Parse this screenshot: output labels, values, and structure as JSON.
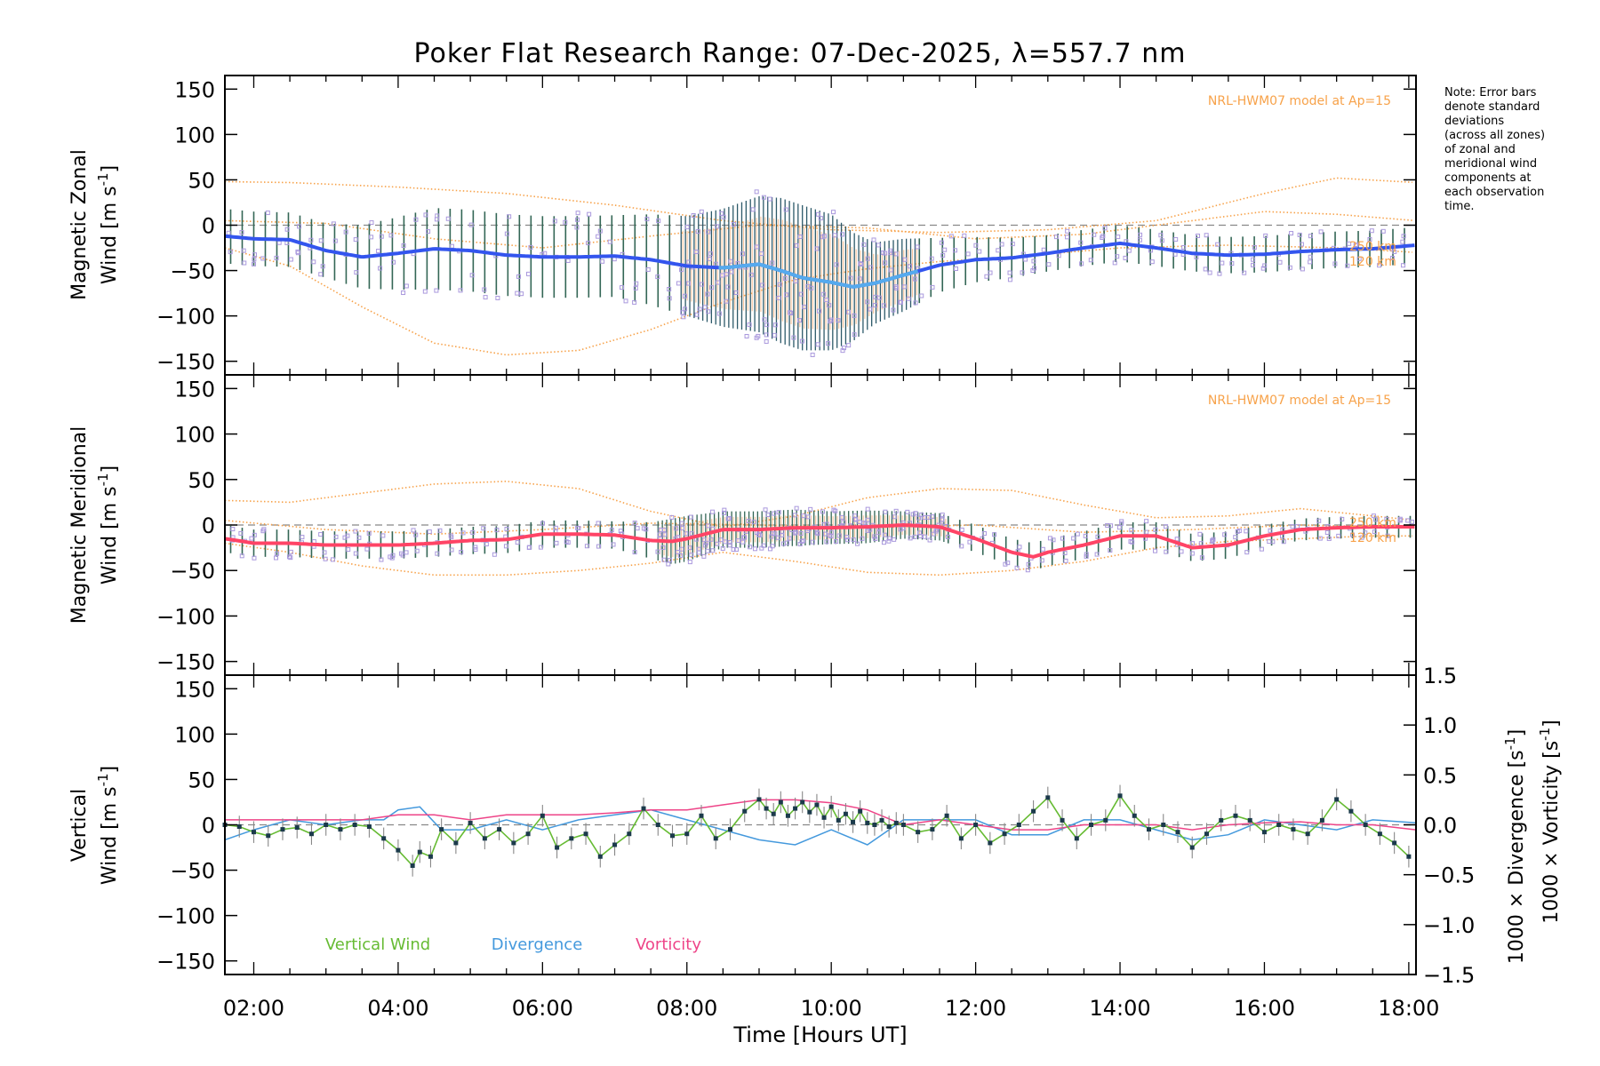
{
  "chart_data": [
    {
      "panel": "zonal",
      "type": "line",
      "title": "Poker Flat Research Range: 07-Dec-2025, λ=557.7 nm",
      "ylabel_line1": "Magnetic Zonal",
      "ylabel_line2": "Wind [m s",
      "ylabel_sup": "-1",
      "ylabel_close": "]",
      "annotation": "NRL-HWM07 model at Ap=15",
      "model_label_250": "250 km",
      "model_label_120": "120 km",
      "ylim": [
        -165,
        165
      ],
      "xlim": [
        1.6,
        18.1
      ],
      "yticks": [
        150,
        100,
        50,
        0,
        -50,
        -100,
        -150
      ],
      "mean_series": {
        "name": "Zonal wind",
        "x": [
          1.6,
          2.0,
          2.5,
          3.0,
          3.5,
          4.0,
          4.5,
          5.0,
          5.5,
          6.0,
          6.5,
          7.0,
          7.5,
          8.0,
          8.5,
          9.0,
          9.3,
          9.6,
          10.0,
          10.3,
          10.6,
          11.0,
          11.5,
          12.0,
          12.5,
          13.0,
          13.5,
          14.0,
          14.5,
          15.0,
          15.5,
          16.0,
          16.5,
          17.0,
          17.5,
          18.1
        ],
        "values": [
          -12,
          -15,
          -16,
          -28,
          -35,
          -31,
          -26,
          -28,
          -33,
          -35,
          -35,
          -34,
          -38,
          -45,
          -47,
          -43,
          -50,
          -58,
          -63,
          -68,
          -64,
          -55,
          -44,
          -38,
          -36,
          -31,
          -25,
          -20,
          -25,
          -31,
          -33,
          -32,
          -29,
          -27,
          -26,
          -22
        ]
      },
      "error_halfwidth": [
        30,
        30,
        30,
        30,
        35,
        40,
        45,
        45,
        45,
        45,
        45,
        45,
        50,
        55,
        65,
        75,
        80,
        80,
        75,
        60,
        45,
        40,
        30,
        25,
        22,
        20,
        20,
        20,
        20,
        20,
        20,
        20,
        20,
        20,
        20,
        20
      ],
      "model_curves": [
        {
          "name": "upper",
          "x": [
            1.6,
            2.5,
            4.0,
            5.5,
            7.0,
            8.5,
            10.0,
            11.5,
            13.0,
            14.5,
            16.0,
            17.0,
            18.1
          ],
          "values": [
            48,
            47,
            42,
            35,
            22,
            5,
            -5,
            -8,
            -5,
            5,
            35,
            52,
            47
          ]
        },
        {
          "name": "middle",
          "x": [
            1.6,
            3.0,
            4.5,
            6.0,
            7.5,
            9.0,
            10.5,
            12.0,
            13.5,
            15.0,
            16.0,
            17.0,
            18.1
          ],
          "values": [
            5,
            2,
            -15,
            -25,
            -12,
            0,
            -3,
            -15,
            -10,
            5,
            15,
            12,
            5
          ]
        },
        {
          "name": "lower",
          "x": [
            1.6,
            2.5,
            3.5,
            4.5,
            5.5,
            6.5,
            7.5,
            8.5,
            9.5,
            10.5,
            11.5,
            12.5,
            14.0,
            15.5,
            17.0,
            18.1
          ],
          "values": [
            -25,
            -45,
            -90,
            -130,
            -143,
            -138,
            -115,
            -85,
            -60,
            -48,
            -40,
            -35,
            -25,
            -22,
            -25,
            -30
          ]
        }
      ]
    },
    {
      "panel": "meridional",
      "type": "line",
      "ylabel_line1": "Magnetic Meridional",
      "ylabel_line2": "Wind [m s",
      "ylabel_sup": "-1",
      "ylabel_close": "]",
      "annotation": "NRL-HWM07 model at Ap=15",
      "model_label_250": "250 km",
      "model_label_120": "120 km",
      "ylim": [
        -165,
        165
      ],
      "xlim": [
        1.6,
        18.1
      ],
      "yticks": [
        150,
        100,
        50,
        0,
        -50,
        -100,
        -150
      ],
      "mean_series": {
        "name": "Meridional wind",
        "x": [
          1.6,
          2.0,
          2.5,
          3.0,
          3.5,
          4.0,
          4.5,
          5.0,
          5.5,
          6.0,
          6.5,
          7.0,
          7.5,
          7.8,
          8.0,
          8.5,
          9.0,
          9.5,
          10.0,
          10.5,
          11.0,
          11.5,
          12.0,
          12.5,
          12.8,
          13.0,
          13.5,
          14.0,
          14.5,
          15.0,
          15.5,
          16.0,
          16.5,
          17.0,
          17.5,
          18.1
        ],
        "values": [
          -15,
          -20,
          -20,
          -22,
          -22,
          -22,
          -20,
          -17,
          -16,
          -10,
          -10,
          -11,
          -17,
          -18,
          -15,
          -5,
          -5,
          -3,
          -3,
          -2,
          0,
          -2,
          -15,
          -30,
          -35,
          -30,
          -22,
          -12,
          -12,
          -25,
          -22,
          -12,
          -5,
          -3,
          -2,
          -2
        ]
      },
      "error_halfwidth": [
        15,
        15,
        15,
        15,
        15,
        15,
        15,
        15,
        15,
        15,
        15,
        15,
        20,
        25,
        25,
        20,
        20,
        20,
        18,
        18,
        15,
        15,
        15,
        15,
        15,
        15,
        15,
        15,
        15,
        15,
        15,
        12,
        12,
        12,
        12,
        12
      ],
      "model_curves": [
        {
          "name": "upper",
          "x": [
            1.6,
            2.5,
            3.5,
            4.5,
            5.5,
            6.5,
            7.5,
            8.5,
            9.5,
            10.5,
            11.5,
            12.5,
            13.5,
            14.5,
            15.5,
            16.5,
            17.5,
            18.1
          ],
          "values": [
            27,
            25,
            35,
            45,
            48,
            40,
            15,
            -2,
            10,
            30,
            40,
            38,
            22,
            8,
            10,
            18,
            10,
            5
          ]
        },
        {
          "name": "middle",
          "x": [
            1.6,
            3.0,
            4.5,
            6.0,
            7.5,
            9.0,
            10.5,
            12.0,
            13.5,
            15.0,
            16.5,
            18.1
          ],
          "values": [
            5,
            -5,
            -10,
            -5,
            2,
            0,
            -3,
            0,
            -8,
            -5,
            0,
            -3
          ]
        },
        {
          "name": "lower",
          "x": [
            1.6,
            2.5,
            3.5,
            4.5,
            5.5,
            6.5,
            7.5,
            8.5,
            9.5,
            10.5,
            11.5,
            12.5,
            13.5,
            14.5,
            15.5,
            16.5,
            17.5,
            18.1
          ],
          "values": [
            -20,
            -30,
            -45,
            -55,
            -55,
            -50,
            -42,
            -30,
            -40,
            -52,
            -55,
            -50,
            -40,
            -25,
            -18,
            -15,
            -12,
            -12
          ]
        }
      ]
    },
    {
      "panel": "vertical",
      "type": "line",
      "ylabel_line1": "Vertical",
      "ylabel_line2": "Wind [m s",
      "ylabel_sup": "-1",
      "ylabel_close": "]",
      "right_axis_div_label": "1000 × Divergence [s",
      "right_axis_vor_label": "1000 × Vorticity [s",
      "right_axis_sup": "-1",
      "right_axis_close": "]",
      "xlabel": "Time [Hours UT]",
      "ylim": [
        -165,
        165
      ],
      "y2lim": [
        -1.5,
        1.5
      ],
      "xlim": [
        1.6,
        18.1
      ],
      "yticks": [
        150,
        100,
        50,
        0,
        -50,
        -100,
        -150
      ],
      "y2ticks": [
        "1.5",
        "1.0",
        "0.5",
        "0.0",
        "−0.5",
        "−1.0",
        "−1.5"
      ],
      "xticks": [
        "02:00",
        "04:00",
        "06:00",
        "08:00",
        "10:00",
        "12:00",
        "14:00",
        "16:00",
        "18:00"
      ],
      "legend": [
        "Vertical Wind",
        "Divergence",
        "Vorticity"
      ],
      "series": [
        {
          "name": "Vertical Wind",
          "x": [
            1.6,
            1.8,
            2.0,
            2.2,
            2.4,
            2.6,
            2.8,
            3.0,
            3.2,
            3.4,
            3.6,
            3.8,
            4.0,
            4.2,
            4.3,
            4.45,
            4.6,
            4.8,
            5.0,
            5.2,
            5.4,
            5.6,
            5.8,
            6.0,
            6.2,
            6.4,
            6.6,
            6.8,
            7.0,
            7.2,
            7.4,
            7.6,
            7.8,
            8.0,
            8.2,
            8.4,
            8.6,
            8.8,
            9.0,
            9.1,
            9.2,
            9.3,
            9.4,
            9.5,
            9.6,
            9.7,
            9.8,
            9.9,
            10.0,
            10.1,
            10.2,
            10.3,
            10.4,
            10.5,
            10.6,
            10.7,
            10.8,
            10.9,
            11.0,
            11.2,
            11.4,
            11.6,
            11.8,
            12.0,
            12.2,
            12.4,
            12.6,
            12.8,
            13.0,
            13.2,
            13.4,
            13.6,
            13.8,
            14.0,
            14.2,
            14.4,
            14.6,
            14.8,
            15.0,
            15.2,
            15.4,
            15.6,
            15.8,
            16.0,
            16.2,
            16.4,
            16.6,
            16.8,
            17.0,
            17.2,
            17.4,
            17.6,
            17.8,
            18.0
          ],
          "values": [
            0,
            -2,
            -8,
            -12,
            -5,
            -3,
            -10,
            0,
            -5,
            0,
            -2,
            -15,
            -28,
            -45,
            -30,
            -35,
            -5,
            -20,
            2,
            -15,
            -5,
            -20,
            -10,
            10,
            -25,
            -15,
            -10,
            -35,
            -22,
            -10,
            18,
            0,
            -12,
            -10,
            10,
            -15,
            -5,
            15,
            28,
            18,
            12,
            25,
            10,
            18,
            25,
            14,
            22,
            8,
            20,
            5,
            12,
            3,
            15,
            2,
            0,
            5,
            -2,
            2,
            0,
            -8,
            -5,
            10,
            -15,
            0,
            -20,
            -10,
            0,
            15,
            30,
            5,
            -15,
            0,
            5,
            32,
            10,
            -5,
            0,
            -8,
            -25,
            -10,
            5,
            10,
            5,
            -8,
            0,
            -5,
            -10,
            5,
            28,
            15,
            0,
            -10,
            -20,
            -35
          ]
        },
        {
          "name": "Divergence",
          "x": [
            1.6,
            2.0,
            2.5,
            3.0,
            3.5,
            3.8,
            4.0,
            4.3,
            4.6,
            5.0,
            5.5,
            6.0,
            6.5,
            7.0,
            7.5,
            8.0,
            8.5,
            9.0,
            9.5,
            10.0,
            10.5,
            11.0,
            11.5,
            12.0,
            12.5,
            13.0,
            13.5,
            14.0,
            14.5,
            15.0,
            15.5,
            16.0,
            16.5,
            17.0,
            17.5,
            18.1
          ],
          "values": [
            -0.15,
            -0.05,
            0.05,
            0.0,
            0.05,
            0.05,
            0.15,
            0.18,
            -0.05,
            -0.05,
            0.05,
            -0.05,
            0.05,
            0.1,
            0.15,
            0.05,
            -0.05,
            -0.15,
            -0.2,
            -0.05,
            -0.2,
            0.05,
            0.05,
            0.05,
            -0.1,
            -0.1,
            0.05,
            0.05,
            -0.05,
            -0.15,
            -0.1,
            0.05,
            0.0,
            -0.05,
            0.05,
            0.02
          ]
        },
        {
          "name": "Vorticity",
          "x": [
            1.6,
            2.0,
            2.5,
            3.0,
            3.5,
            4.0,
            4.5,
            5.0,
            5.5,
            6.0,
            6.5,
            7.0,
            7.5,
            8.0,
            8.5,
            9.0,
            9.5,
            10.0,
            10.5,
            11.0,
            11.5,
            12.0,
            12.5,
            13.0,
            13.5,
            14.0,
            14.5,
            15.0,
            15.5,
            16.0,
            16.5,
            17.0,
            17.5,
            18.1
          ],
          "values": [
            0.05,
            0.05,
            0.05,
            0.05,
            0.05,
            0.1,
            0.1,
            0.05,
            0.1,
            0.1,
            0.1,
            0.12,
            0.15,
            0.15,
            0.2,
            0.25,
            0.25,
            0.22,
            0.15,
            0.0,
            0.05,
            0.0,
            -0.05,
            -0.05,
            0.0,
            0.0,
            0.0,
            -0.05,
            0.0,
            0.02,
            0.03,
            0.0,
            0.0,
            -0.05
          ]
        }
      ]
    }
  ],
  "note": [
    "Note: Error bars",
    "denote standard",
    "deviations",
    "(across all zones)",
    "of zonal and",
    "meridional wind",
    "components at",
    "each observation",
    "time."
  ],
  "colors": {
    "zonal": "#3355ee",
    "zonal_light": "#55aaee",
    "meridional": "#ff4466",
    "vertical": "#66bb33",
    "divergence": "#4499dd",
    "vorticity": "#ee4488",
    "model": "#f7a24a",
    "errorbar": "#336655",
    "scatter": "#aa99dd"
  }
}
